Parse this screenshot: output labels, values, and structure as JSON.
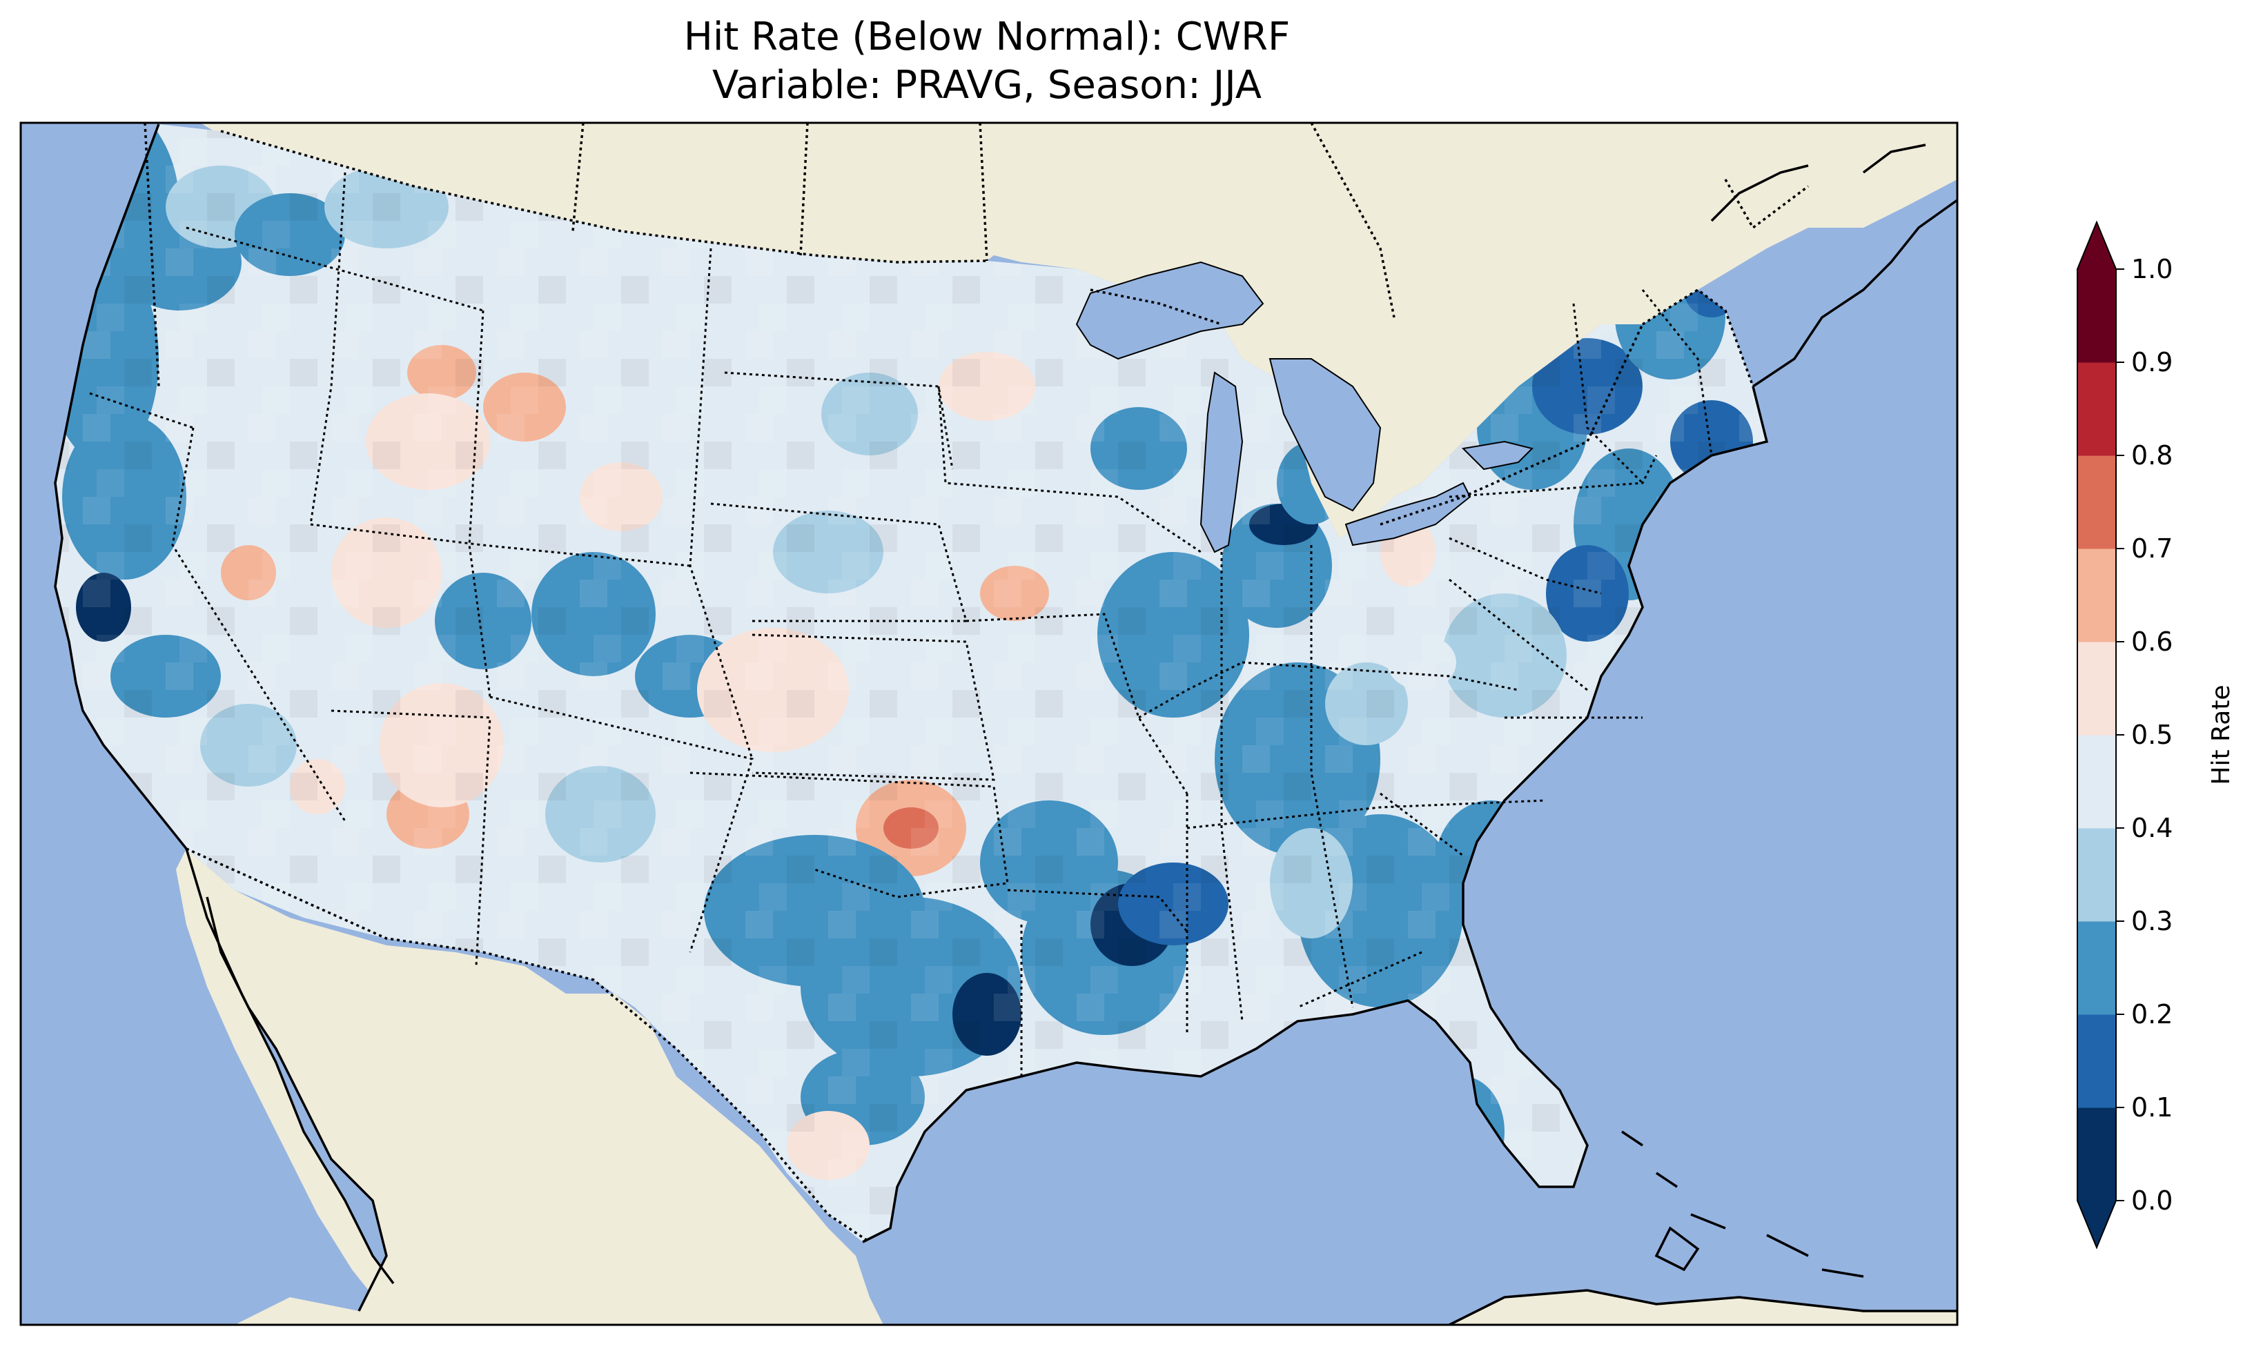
{
  "title": {
    "line1": "Hit Rate (Below Normal): CWRF",
    "line2": "Variable: PRAVG, Season: JJA"
  },
  "colors": {
    "ocean": "#96b4e0",
    "land": "#efecda",
    "frame": "#000000"
  },
  "colorbar": {
    "label": "Hit Rate",
    "extend": "both",
    "ticks": [
      "0.0",
      "0.1",
      "0.2",
      "0.3",
      "0.4",
      "0.5",
      "0.6",
      "0.7",
      "0.8",
      "0.9",
      "1.0"
    ],
    "bins": [
      {
        "lower": 0.0,
        "upper": 0.1,
        "color": "#053061"
      },
      {
        "lower": 0.1,
        "upper": 0.2,
        "color": "#2166ac"
      },
      {
        "lower": 0.2,
        "upper": 0.3,
        "color": "#4393c3"
      },
      {
        "lower": 0.3,
        "upper": 0.4,
        "color": "#a9cfe4"
      },
      {
        "lower": 0.4,
        "upper": 0.5,
        "color": "#e1ebf3"
      },
      {
        "lower": 0.5,
        "upper": 0.6,
        "color": "#f8e3da"
      },
      {
        "lower": 0.6,
        "upper": 0.7,
        "color": "#f4b498"
      },
      {
        "lower": 0.7,
        "upper": 0.8,
        "color": "#dc6e58"
      },
      {
        "lower": 0.8,
        "upper": 0.9,
        "color": "#b72531"
      },
      {
        "lower": 0.9,
        "upper": 1.0,
        "color": "#67001f"
      }
    ]
  }
}
